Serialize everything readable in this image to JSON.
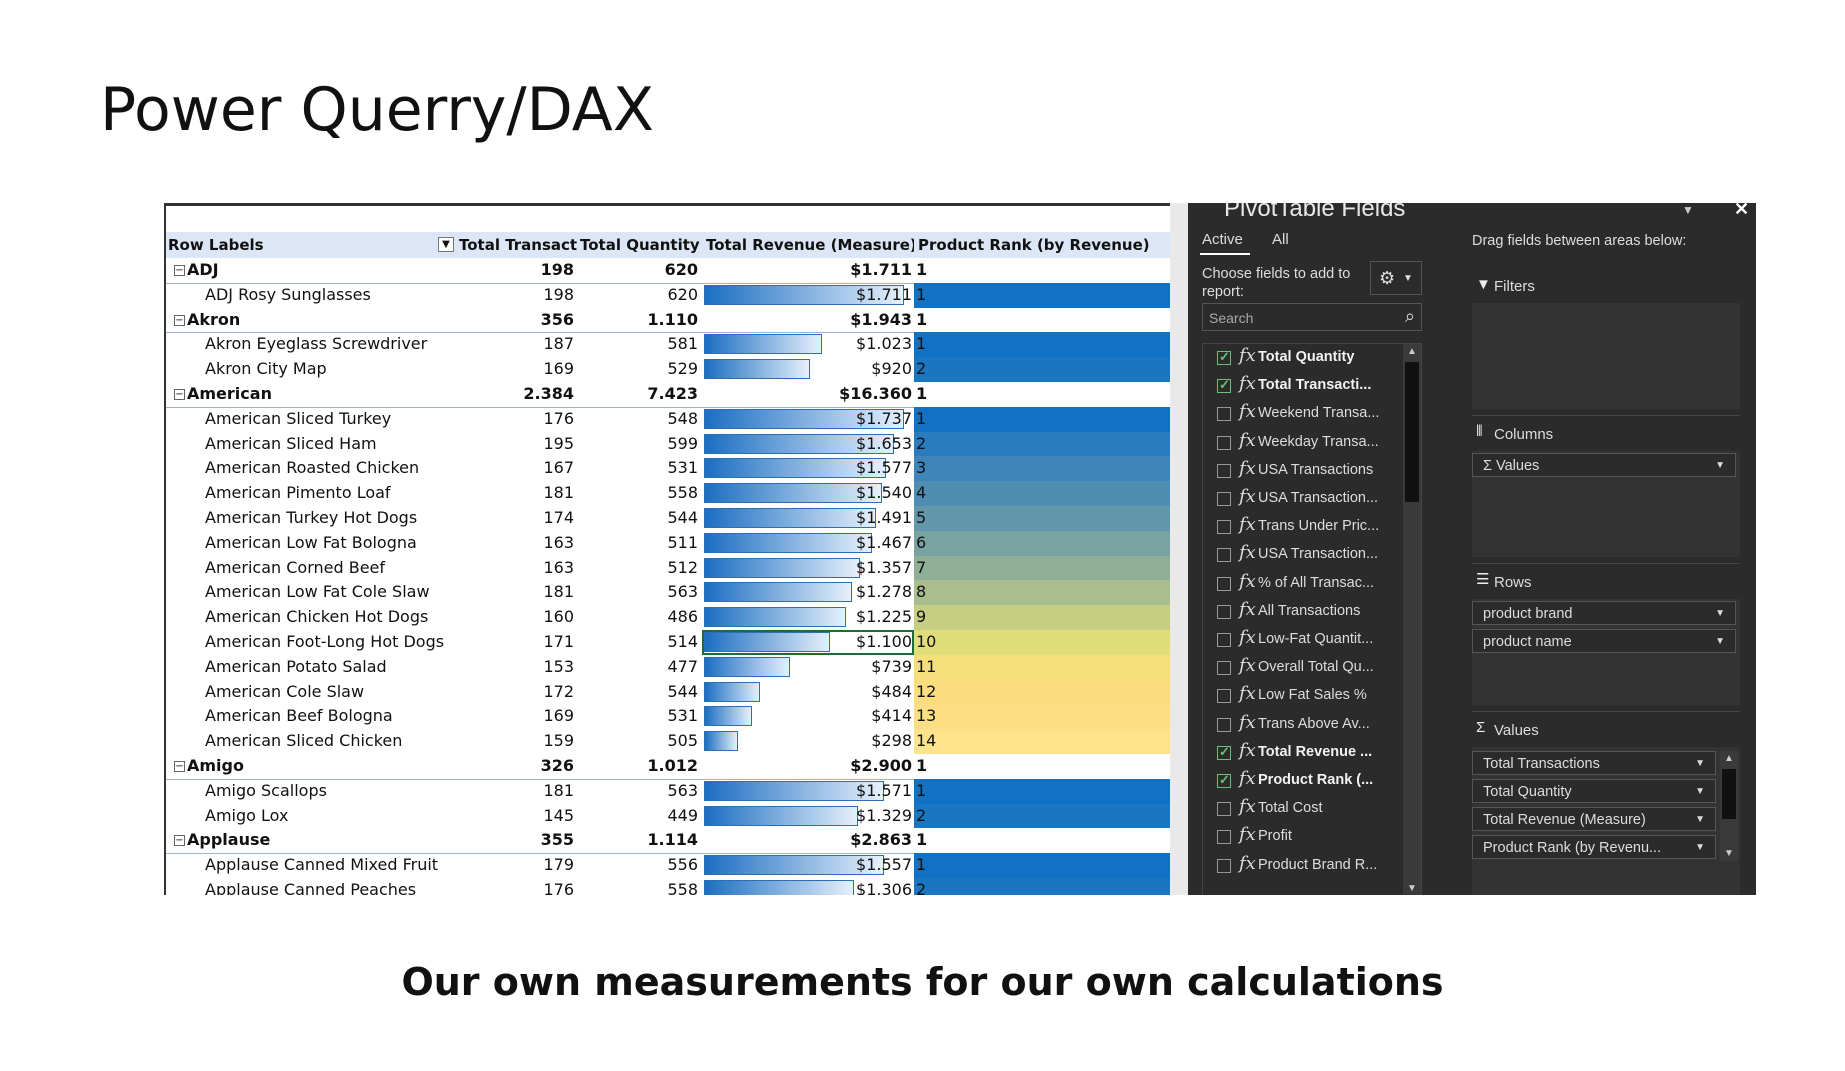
{
  "slide": {
    "title": "Power Querry/DAX",
    "subtitle": "Our own measurements for our own calculations"
  },
  "pivot": {
    "headers": {
      "row_labels": "Row Labels",
      "total_transactions": "Total Transactions",
      "total_quantity": "Total Quantity",
      "total_revenue": "Total Revenue (Measure)",
      "product_rank": "Product Rank (by Revenue)"
    },
    "filter_icon": "filter-dropdown-icon",
    "expander_icon": "collapse-minus-icon",
    "rows": [
      {
        "type": "group",
        "label": "ADJ",
        "tr": "198",
        "tq": "620",
        "rev": "$1.711",
        "rank": "1"
      },
      {
        "type": "item",
        "label": "ADJ Rosy Sunglasses",
        "tr": "198",
        "tq": "620",
        "rev": "$1.711",
        "rank": "1",
        "bar": 1.0,
        "color": "#1171c4"
      },
      {
        "type": "group",
        "label": "Akron",
        "tr": "356",
        "tq": "1.110",
        "rev": "$1.943",
        "rank": "1"
      },
      {
        "type": "item",
        "label": "Akron Eyeglass Screwdriver",
        "tr": "187",
        "tq": "581",
        "rev": "$1.023",
        "rank": "1",
        "bar": 0.59,
        "color": "#1171c4"
      },
      {
        "type": "item",
        "label": "Akron City Map",
        "tr": "169",
        "tq": "529",
        "rev": "$920",
        "rank": "2",
        "bar": 0.53,
        "color": "#1a76c0"
      },
      {
        "type": "group",
        "label": "American",
        "tr": "2.384",
        "tq": "7.423",
        "rev": "$16.360",
        "rank": "1"
      },
      {
        "type": "item",
        "label": "American Sliced Turkey",
        "tr": "176",
        "tq": "548",
        "rev": "$1.737",
        "rank": "1",
        "bar": 1.0,
        "color": "#1171c4"
      },
      {
        "type": "item",
        "label": "American Sliced Ham",
        "tr": "195",
        "tq": "599",
        "rev": "$1.653",
        "rank": "2",
        "bar": 0.95,
        "color": "#2b7cbf"
      },
      {
        "type": "item",
        "label": "American Roasted Chicken",
        "tr": "167",
        "tq": "531",
        "rev": "$1.577",
        "rank": "3",
        "bar": 0.91,
        "color": "#3e85b8"
      },
      {
        "type": "item",
        "label": "American Pimento Loaf",
        "tr": "181",
        "tq": "558",
        "rev": "$1.540",
        "rank": "4",
        "bar": 0.89,
        "color": "#4f8db2"
      },
      {
        "type": "item",
        "label": "American Turkey Hot Dogs",
        "tr": "174",
        "tq": "544",
        "rev": "$1.491",
        "rank": "5",
        "bar": 0.86,
        "color": "#6297aa"
      },
      {
        "type": "item",
        "label": "American Low Fat Bologna",
        "tr": "163",
        "tq": "511",
        "rev": "$1.467",
        "rank": "6",
        "bar": 0.84,
        "color": "#78a3a1"
      },
      {
        "type": "item",
        "label": "American Corned Beef",
        "tr": "163",
        "tq": "512",
        "rev": "$1.357",
        "rank": "7",
        "bar": 0.78,
        "color": "#8fb097"
      },
      {
        "type": "item",
        "label": "American Low Fat Cole Slaw",
        "tr": "181",
        "tq": "563",
        "rev": "$1.278",
        "rank": "8",
        "bar": 0.74,
        "color": "#a9be8c"
      },
      {
        "type": "item",
        "label": "American Chicken Hot Dogs",
        "tr": "160",
        "tq": "486",
        "rev": "$1.225",
        "rank": "9",
        "bar": 0.71,
        "color": "#c6cf81"
      },
      {
        "type": "item",
        "label": "American Foot-Long Hot Dogs",
        "tr": "171",
        "tq": "514",
        "rev": "$1.100",
        "rank": "10",
        "bar": 0.63,
        "color": "#e2dd7b"
      },
      {
        "type": "item",
        "label": "American Potato Salad",
        "tr": "153",
        "tq": "477",
        "rev": "$739",
        "rank": "11",
        "bar": 0.43,
        "color": "#f5df7a"
      },
      {
        "type": "item",
        "label": "American Cole Slaw",
        "tr": "172",
        "tq": "544",
        "rev": "$484",
        "rank": "12",
        "bar": 0.28,
        "color": "#fadd7c"
      },
      {
        "type": "item",
        "label": "American Beef Bologna",
        "tr": "169",
        "tq": "531",
        "rev": "$414",
        "rank": "13",
        "bar": 0.24,
        "color": "#fcdf82"
      },
      {
        "type": "item",
        "label": "American Sliced Chicken",
        "tr": "159",
        "tq": "505",
        "rev": "$298",
        "rank": "14",
        "bar": 0.17,
        "color": "#fde38c"
      },
      {
        "type": "group",
        "label": "Amigo",
        "tr": "326",
        "tq": "1.012",
        "rev": "$2.900",
        "rank": "1"
      },
      {
        "type": "item",
        "label": "Amigo Scallops",
        "tr": "181",
        "tq": "563",
        "rev": "$1.571",
        "rank": "1",
        "bar": 0.9,
        "color": "#1171c4"
      },
      {
        "type": "item",
        "label": "Amigo Lox",
        "tr": "145",
        "tq": "449",
        "rev": "$1.329",
        "rank": "2",
        "bar": 0.77,
        "color": "#1a76c0"
      },
      {
        "type": "group",
        "label": "Applause",
        "tr": "355",
        "tq": "1.114",
        "rev": "$2.863",
        "rank": "1"
      },
      {
        "type": "item",
        "label": "Applause Canned Mixed Fruit",
        "tr": "179",
        "tq": "556",
        "rev": "$1.557",
        "rank": "1",
        "bar": 0.9,
        "color": "#1171c4"
      },
      {
        "type": "item",
        "label": "Applause Canned Peaches",
        "tr": "176",
        "tq": "558",
        "rev": "$1.306",
        "rank": "2",
        "bar": 0.75,
        "color": "#1a76c0"
      }
    ]
  },
  "fields_pane": {
    "title": "PivotTable Fields",
    "tabs": [
      "Active",
      "All"
    ],
    "choose_label": "Choose fields to add to report:",
    "search_placeholder": "Search",
    "drag_hint": "Drag fields between areas below:",
    "fields": [
      {
        "name": "Total Quantity",
        "checked": true
      },
      {
        "name": "Total Transacti...",
        "checked": true
      },
      {
        "name": "Weekend Transa...",
        "checked": false
      },
      {
        "name": "Weekday Transa...",
        "checked": false
      },
      {
        "name": "USA Transactions",
        "checked": false
      },
      {
        "name": "USA Transaction...",
        "checked": false
      },
      {
        "name": "Trans Under Pric...",
        "checked": false
      },
      {
        "name": "USA Transaction...",
        "checked": false
      },
      {
        "name": "% of All Transac...",
        "checked": false
      },
      {
        "name": "All Transactions",
        "checked": false
      },
      {
        "name": "Low-Fat Quantit...",
        "checked": false
      },
      {
        "name": "Overall Total Qu...",
        "checked": false
      },
      {
        "name": "Low Fat Sales %",
        "checked": false
      },
      {
        "name": "Trans Above Av...",
        "checked": false
      },
      {
        "name": "Total Revenue ...",
        "checked": true
      },
      {
        "name": "Product Rank (...",
        "checked": true
      },
      {
        "name": "Total Cost",
        "checked": false
      },
      {
        "name": "Profit",
        "checked": false
      },
      {
        "name": "Product Brand R...",
        "checked": false
      }
    ],
    "areas": {
      "filters_label": "Filters",
      "columns_label": "Columns",
      "columns_items": [
        "Values"
      ],
      "rows_label": "Rows",
      "rows_items": [
        "product brand",
        "product name"
      ],
      "values_label": "Values",
      "values_items": [
        "Total Transactions",
        "Total Quantity",
        "Total Revenue (Measure)",
        "Product Rank (by Revenu..."
      ]
    }
  }
}
